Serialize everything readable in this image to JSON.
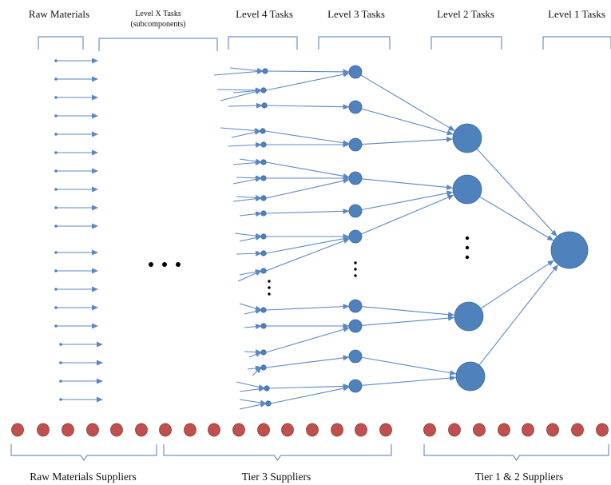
{
  "diagram": {
    "top_labels": [
      {
        "id": "raw-materials",
        "text": "Raw Materials"
      },
      {
        "id": "level-x",
        "text": "Level X Tasks",
        "sub": "(subcomponents)"
      },
      {
        "id": "level-4",
        "text": "Level 4 Tasks"
      },
      {
        "id": "level-3",
        "text": "Level 3 Tasks"
      },
      {
        "id": "level-2",
        "text": "Level 2 Tasks"
      },
      {
        "id": "level-1",
        "text": "Level 1 Tasks"
      }
    ],
    "bottom_labels": [
      {
        "id": "raw-materials-suppliers",
        "text": "Raw Materials Suppliers"
      },
      {
        "id": "tier-3-suppliers",
        "text": "Tier 3 Suppliers"
      },
      {
        "id": "tier-1-2-suppliers",
        "text": "Tier 1 & 2 Suppliers"
      }
    ],
    "colors": {
      "node_blue": "#4f81bd",
      "node_stroke": "#3a6aa3",
      "arrow_blue": "#5b87c5",
      "supplier_red": "#c0504d",
      "supplier_stroke": "#8c3836",
      "bracket_blue": "#6f93c9",
      "ellipsis": "#000000"
    }
  }
}
